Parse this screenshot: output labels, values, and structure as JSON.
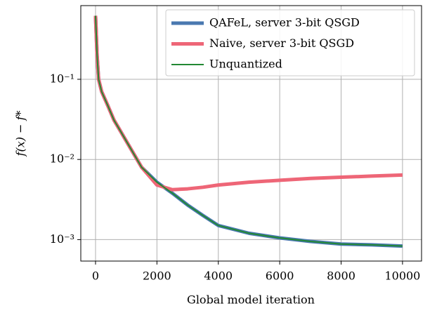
{
  "chart_data": {
    "type": "line",
    "xlabel": "Global model iteration",
    "ylabel": "f(x) − f*",
    "x": [
      0,
      50,
      100,
      200,
      400,
      600,
      800,
      1000,
      1500,
      2000,
      2500,
      3000,
      3500,
      4000,
      5000,
      6000,
      7000,
      8000,
      9000,
      10000
    ],
    "series": [
      {
        "name": "QAFeL, server 3-bit QSGD",
        "color": "#4a78b0",
        "values": [
          0.62,
          0.2,
          0.1,
          0.07,
          0.047,
          0.031,
          0.023,
          0.017,
          0.008,
          0.0052,
          0.0038,
          0.0027,
          0.002,
          0.0015,
          0.0012,
          0.00105,
          0.00095,
          0.00088,
          0.00086,
          0.00083
        ]
      },
      {
        "name": "Naive, server 3-bit QSGD",
        "color": "#ee6677",
        "values": [
          0.62,
          0.2,
          0.1,
          0.07,
          0.047,
          0.031,
          0.023,
          0.017,
          0.008,
          0.0048,
          0.0042,
          0.0043,
          0.0045,
          0.0048,
          0.0052,
          0.0055,
          0.0058,
          0.006,
          0.0062,
          0.0064
        ]
      },
      {
        "name": "Unquantized",
        "color": "#228833",
        "values": [
          0.62,
          0.2,
          0.1,
          0.07,
          0.047,
          0.031,
          0.023,
          0.017,
          0.008,
          0.0052,
          0.0038,
          0.0027,
          0.002,
          0.0015,
          0.0012,
          0.00105,
          0.00095,
          0.00088,
          0.00086,
          0.00083
        ]
      }
    ],
    "xlim": [
      -480,
      10620
    ],
    "xticks": [
      0,
      2000,
      4000,
      6000,
      8000,
      10000
    ],
    "ylim": [
      0.00054,
      0.83
    ],
    "yscale": "log",
    "yticks": [
      {
        "value": 0.001,
        "label": "10⁻³"
      },
      {
        "value": 0.01,
        "label": "10⁻²"
      },
      {
        "value": 0.1,
        "label": "10⁻¹"
      }
    ],
    "grid": true,
    "legend": "upper right"
  }
}
